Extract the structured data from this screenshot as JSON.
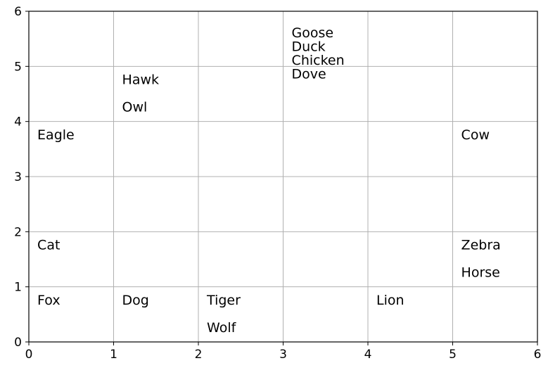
{
  "chart_data": {
    "type": "scatter",
    "title": "",
    "xlabel": "",
    "ylabel": "",
    "xlim": [
      0,
      6
    ],
    "ylim": [
      0,
      6
    ],
    "xticks": [
      "0",
      "1",
      "2",
      "3",
      "4",
      "5",
      "6"
    ],
    "yticks": [
      "0",
      "1",
      "2",
      "3",
      "4",
      "5",
      "6"
    ],
    "grid": true,
    "points": [
      {
        "label": "Fox",
        "x": 0.1,
        "y": 0.75
      },
      {
        "label": "Cat",
        "x": 0.1,
        "y": 1.75
      },
      {
        "label": "Eagle",
        "x": 0.1,
        "y": 3.75
      },
      {
        "label": "Dog",
        "x": 1.1,
        "y": 0.75
      },
      {
        "label": "Owl",
        "x": 1.1,
        "y": 4.25
      },
      {
        "label": "Hawk",
        "x": 1.1,
        "y": 4.75
      },
      {
        "label": "Tiger",
        "x": 2.1,
        "y": 0.75
      },
      {
        "label": "Wolf",
        "x": 2.1,
        "y": 0.25
      },
      {
        "label": "Goose",
        "x": 3.1,
        "y": 5.6
      },
      {
        "label": "Duck",
        "x": 3.1,
        "y": 5.35
      },
      {
        "label": "Chicken",
        "x": 3.1,
        "y": 5.1
      },
      {
        "label": "Dove",
        "x": 3.1,
        "y": 4.85
      },
      {
        "label": "Lion",
        "x": 4.1,
        "y": 0.75
      },
      {
        "label": "Cow",
        "x": 5.1,
        "y": 3.75
      },
      {
        "label": "Zebra",
        "x": 5.1,
        "y": 1.75
      },
      {
        "label": "Horse",
        "x": 5.1,
        "y": 1.25
      }
    ]
  }
}
